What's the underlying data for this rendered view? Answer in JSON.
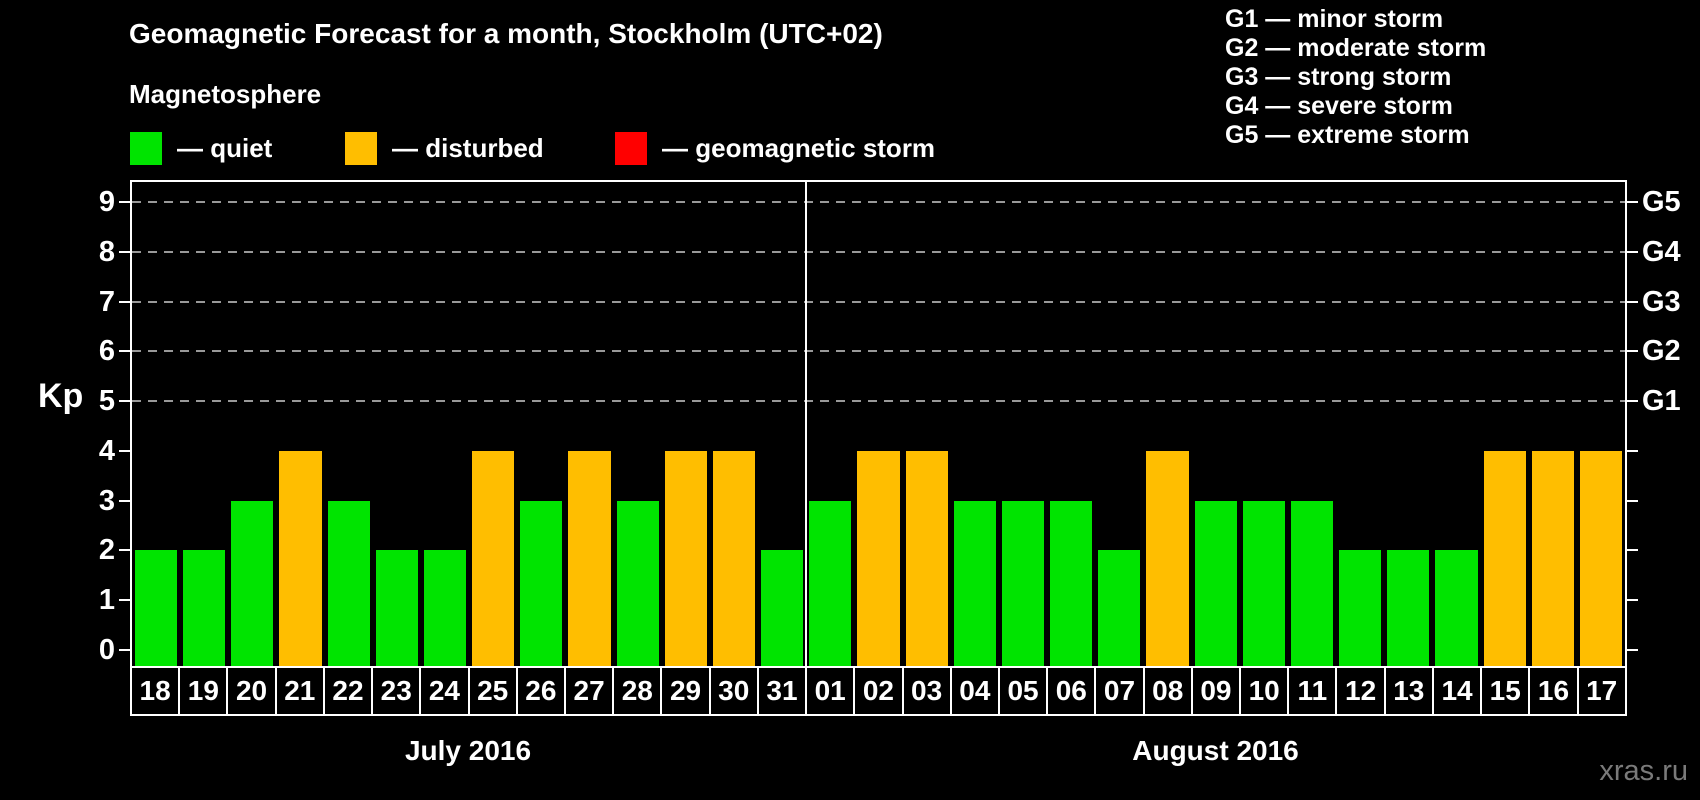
{
  "subtitle": "Magnetosphere",
  "legend": {
    "items": [
      {
        "label": "— quiet",
        "status": "quiet",
        "color": "#00E400"
      },
      {
        "label": "— disturbed",
        "status": "disturbed",
        "color": "#FFBE00"
      },
      {
        "label": "— geomagnetic storm",
        "status": "storm",
        "color": "#FF0000"
      }
    ]
  },
  "storm_scale": [
    "G1 — minor storm",
    "G2 — moderate storm",
    "G3 — strong storm",
    "G4 — severe storm",
    "G5 — extreme storm"
  ],
  "watermark": "xras.ru",
  "colors": {
    "quiet": "#00E400",
    "disturbed": "#FFBE00",
    "storm": "#FF0000",
    "axis": "#FFFFFF",
    "grid": "#999999",
    "background": "#000000",
    "watermark_text": "#7A7A7A"
  },
  "chart_data": {
    "type": "bar",
    "title": "Geomagnetic Forecast for a month, Stockholm (UTC+02)",
    "ylabel": "Kp",
    "ylim": [
      0,
      9
    ],
    "yticks": [
      0,
      1,
      2,
      3,
      4,
      5,
      6,
      7,
      8,
      9
    ],
    "gridlines_at": [
      5,
      6,
      7,
      8,
      9
    ],
    "grid": true,
    "legend_position": "top",
    "right_axis": [
      {
        "kp": 5,
        "label": "G1"
      },
      {
        "kp": 6,
        "label": "G2"
      },
      {
        "kp": 7,
        "label": "G3"
      },
      {
        "kp": 8,
        "label": "G4"
      },
      {
        "kp": 9,
        "label": "G5"
      }
    ],
    "months": [
      {
        "name": "July 2016",
        "days": [
          {
            "day": "18",
            "kp": 2,
            "status": "quiet"
          },
          {
            "day": "19",
            "kp": 2,
            "status": "quiet"
          },
          {
            "day": "20",
            "kp": 3,
            "status": "quiet"
          },
          {
            "day": "21",
            "kp": 4,
            "status": "disturbed"
          },
          {
            "day": "22",
            "kp": 3,
            "status": "quiet"
          },
          {
            "day": "23",
            "kp": 2,
            "status": "quiet"
          },
          {
            "day": "24",
            "kp": 2,
            "status": "quiet"
          },
          {
            "day": "25",
            "kp": 4,
            "status": "disturbed"
          },
          {
            "day": "26",
            "kp": 3,
            "status": "quiet"
          },
          {
            "day": "27",
            "kp": 4,
            "status": "disturbed"
          },
          {
            "day": "28",
            "kp": 3,
            "status": "quiet"
          },
          {
            "day": "29",
            "kp": 4,
            "status": "disturbed"
          },
          {
            "day": "30",
            "kp": 4,
            "status": "disturbed"
          },
          {
            "day": "31",
            "kp": 2,
            "status": "quiet"
          }
        ]
      },
      {
        "name": "August 2016",
        "days": [
          {
            "day": "01",
            "kp": 3,
            "status": "quiet"
          },
          {
            "day": "02",
            "kp": 4,
            "status": "disturbed"
          },
          {
            "day": "03",
            "kp": 4,
            "status": "disturbed"
          },
          {
            "day": "04",
            "kp": 3,
            "status": "quiet"
          },
          {
            "day": "05",
            "kp": 3,
            "status": "quiet"
          },
          {
            "day": "06",
            "kp": 3,
            "status": "quiet"
          },
          {
            "day": "07",
            "kp": 2,
            "status": "quiet"
          },
          {
            "day": "08",
            "kp": 4,
            "status": "disturbed"
          },
          {
            "day": "09",
            "kp": 3,
            "status": "quiet"
          },
          {
            "day": "10",
            "kp": 3,
            "status": "quiet"
          },
          {
            "day": "11",
            "kp": 3,
            "status": "quiet"
          },
          {
            "day": "12",
            "kp": 2,
            "status": "quiet"
          },
          {
            "day": "13",
            "kp": 2,
            "status": "quiet"
          },
          {
            "day": "14",
            "kp": 2,
            "status": "quiet"
          },
          {
            "day": "15",
            "kp": 4,
            "status": "disturbed"
          },
          {
            "day": "16",
            "kp": 4,
            "status": "disturbed"
          },
          {
            "day": "17",
            "kp": 4,
            "status": "disturbed"
          }
        ]
      }
    ]
  }
}
